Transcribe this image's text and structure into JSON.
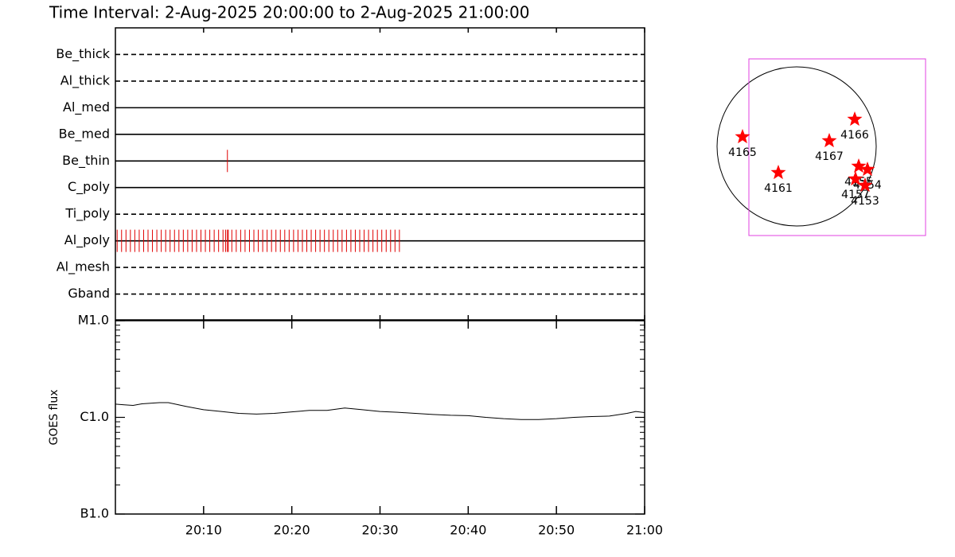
{
  "title": "Time Interval:  2-Aug-2025 20:00:00 to  2-Aug-2025 21:00:00",
  "chart_data": [
    {
      "type": "timeline",
      "categories": [
        "Be_thick",
        "Al_thick",
        "Al_med",
        "Be_med",
        "Be_thin",
        "C_poly",
        "Ti_poly",
        "Al_poly",
        "Al_mesh",
        "Gband"
      ],
      "line_styles": [
        "dashed",
        "dashed",
        "solid",
        "solid",
        "solid",
        "solid",
        "dashed",
        "solid",
        "dashed",
        "dashed"
      ],
      "observations": [
        [],
        [],
        [],
        [],
        [
          12.7
        ],
        [],
        [],
        [
          0.2,
          0.7,
          1.2,
          1.7,
          2.2,
          2.7,
          3.2,
          3.7,
          4.2,
          4.7,
          5.2,
          5.7,
          6.2,
          6.7,
          7.2,
          7.7,
          8.2,
          8.7,
          9.2,
          9.7,
          10.2,
          10.7,
          11.2,
          11.7,
          12.2,
          12.5,
          12.7,
          12.8,
          13.2,
          13.7,
          14.2,
          14.7,
          15.2,
          15.7,
          16.2,
          16.7,
          17.2,
          17.7,
          18.2,
          18.7,
          19.2,
          19.7,
          20.2,
          20.7,
          21.2,
          21.7,
          22.2,
          22.7,
          23.2,
          23.7,
          24.2,
          24.7,
          25.2,
          25.7,
          26.2,
          26.7,
          27.2,
          27.7,
          28.2,
          28.7,
          29.2,
          29.7,
          30.2,
          30.7,
          31.2,
          31.7,
          32.2
        ],
        [],
        []
      ],
      "color": "#e00000",
      "xlim": [
        0,
        60
      ]
    },
    {
      "type": "line",
      "ylabel": "GOES flux",
      "log_scale": true,
      "x": [
        0,
        1,
        2,
        3,
        5,
        6,
        8,
        10,
        12,
        14,
        16,
        18,
        20,
        22,
        24,
        26,
        28,
        30,
        32,
        34,
        36,
        38,
        40,
        42,
        44,
        46,
        48,
        50,
        52,
        54,
        56,
        58,
        59,
        60
      ],
      "values": [
        1.37e-06,
        1.35e-06,
        1.33e-06,
        1.38e-06,
        1.42e-06,
        1.42e-06,
        1.3e-06,
        1.2e-06,
        1.15e-06,
        1.1e-06,
        1.08e-06,
        1.1e-06,
        1.14e-06,
        1.18e-06,
        1.18e-06,
        1.25e-06,
        1.2e-06,
        1.15e-06,
        1.13e-06,
        1.1e-06,
        1.07e-06,
        1.05e-06,
        1.04e-06,
        1e-06,
        9.7e-07,
        9.5e-07,
        9.5e-07,
        9.7e-07,
        1e-06,
        1.02e-06,
        1.03e-06,
        1.1e-06,
        1.15e-06,
        1.12e-06
      ],
      "color": "#000000",
      "xlim": [
        0,
        60
      ],
      "xticks": [
        {
          "value": 10,
          "label": "20:10"
        },
        {
          "value": 20,
          "label": "20:20"
        },
        {
          "value": 30,
          "label": "20:30"
        },
        {
          "value": 40,
          "label": "20:40"
        },
        {
          "value": 50,
          "label": "20:50"
        },
        {
          "value": 60,
          "label": "21:00"
        }
      ],
      "ylim": [
        1e-07,
        1e-05
      ],
      "yticks": [
        {
          "value": 1e-07,
          "label": "B1.0"
        },
        {
          "value": 1e-06,
          "label": "C1.0"
        },
        {
          "value": 1e-05,
          "label": "M1.0"
        }
      ],
      "yminorticks": [
        2e-07,
        3e-07,
        4e-07,
        5e-07,
        6e-07,
        7e-07,
        8e-07,
        9e-07,
        2e-06,
        3e-06,
        4e-06,
        5e-06,
        6e-06,
        7e-06,
        8e-06,
        9e-06
      ]
    },
    {
      "type": "map",
      "regions": [
        {
          "label": "4165",
          "x": -0.68,
          "y": 0.12
        },
        {
          "label": "4161",
          "x": -0.23,
          "y": -0.33
        },
        {
          "label": "4167",
          "x": 0.41,
          "y": 0.07
        },
        {
          "label": "4166",
          "x": 0.73,
          "y": 0.34
        },
        {
          "label": "4155",
          "x": 0.78,
          "y": -0.25
        },
        {
          "label": "4154",
          "x": 0.89,
          "y": -0.29
        },
        {
          "label": "4157",
          "x": 0.74,
          "y": -0.41
        },
        {
          "label": "4153",
          "x": 0.86,
          "y": -0.49
        }
      ],
      "color": "#ff0000",
      "fov": {
        "xlim": [
          -0.6,
          1.62
        ],
        "ylim": [
          -1.12,
          1.1
        ],
        "color": "#e040e0"
      }
    }
  ]
}
